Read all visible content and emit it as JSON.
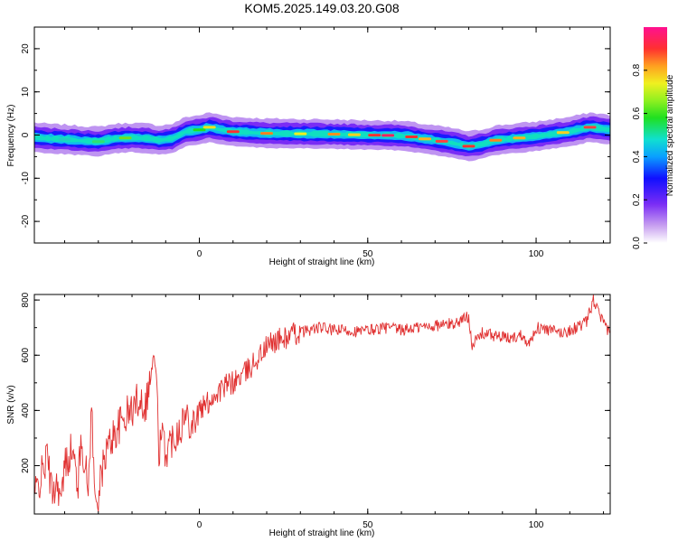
{
  "figure_title": "KOM5.2025.149.03.20.G08",
  "chart_data": [
    {
      "type": "heatmap",
      "title": "",
      "xlabel": "Height of straight line (km)",
      "ylabel": "Frequency (Hz)",
      "xlim": [
        -49,
        122
      ],
      "ylim": [
        -25,
        25
      ],
      "xticks": [
        0,
        50,
        100
      ],
      "yticks": [
        -20,
        -10,
        0,
        10,
        20
      ],
      "colorbar": {
        "label": "Normalized spectral amplitude",
        "range": [
          0,
          1
        ],
        "ticks": [
          0.0,
          0.2,
          0.4,
          0.6,
          0.8
        ],
        "tick_labels": [
          "0.0",
          "0.2",
          "0.4",
          "0.6",
          "0.8"
        ]
      },
      "ridge": {
        "x": [
          -49,
          -45,
          -40,
          -35,
          -30,
          -25,
          -20,
          -15,
          -12,
          -8,
          -4,
          0,
          3,
          6,
          10,
          15,
          20,
          30,
          40,
          50,
          58,
          62,
          66,
          70,
          75,
          80,
          84,
          88,
          92,
          100,
          110,
          116,
          122
        ],
        "frequency": [
          -0.5,
          -0.8,
          -1.0,
          -1.3,
          -1.5,
          -0.8,
          -0.6,
          -0.8,
          -1.2,
          -0.8,
          0.8,
          1.2,
          1.8,
          1.3,
          0.8,
          0.6,
          0.4,
          0.3,
          0.2,
          0.0,
          -0.1,
          -0.3,
          -0.8,
          -1.2,
          -1.8,
          -2.6,
          -2.1,
          -1.2,
          -0.9,
          -0.3,
          0.8,
          1.8,
          1.2
        ]
      }
    },
    {
      "type": "line",
      "title": "",
      "xlabel": "Height of straight line (km)",
      "ylabel": "SNR (v/v)",
      "xlim": [
        -49,
        122
      ],
      "ylim": [
        25,
        820
      ],
      "xticks": [
        0,
        50,
        100
      ],
      "yticks": [
        200,
        400,
        600,
        800
      ],
      "color": "#e03030",
      "anchors": {
        "x": [
          -49,
          -47,
          -45,
          -44,
          -42,
          -41,
          -40,
          -38,
          -36,
          -35,
          -33,
          -32,
          -31,
          -30,
          -28,
          -26,
          -24,
          -22,
          -20,
          -18,
          -16,
          -14,
          -13,
          -12,
          -11,
          -10,
          -8,
          -6,
          -4,
          -2,
          0,
          2,
          4,
          6,
          8,
          10,
          12,
          14,
          16,
          18,
          20,
          22,
          25,
          28,
          32,
          36,
          40,
          44,
          48,
          52,
          56,
          60,
          64,
          68,
          72,
          76,
          78,
          80,
          81,
          82,
          84,
          88,
          92,
          96,
          98,
          100,
          104,
          108,
          112,
          115,
          117,
          119,
          121,
          122
        ],
        "snr": [
          90,
          160,
          240,
          110,
          140,
          60,
          200,
          260,
          140,
          300,
          110,
          420,
          60,
          90,
          240,
          300,
          340,
          380,
          400,
          450,
          420,
          560,
          580,
          260,
          300,
          250,
          300,
          340,
          380,
          360,
          400,
          420,
          450,
          470,
          490,
          500,
          520,
          540,
          570,
          600,
          630,
          650,
          660,
          675,
          690,
          700,
          690,
          690,
          685,
          695,
          700,
          690,
          700,
          705,
          710,
          715,
          730,
          740,
          640,
          650,
          680,
          670,
          660,
          675,
          640,
          700,
          690,
          680,
          700,
          720,
          800,
          740,
          690,
          700
        ]
      }
    }
  ]
}
